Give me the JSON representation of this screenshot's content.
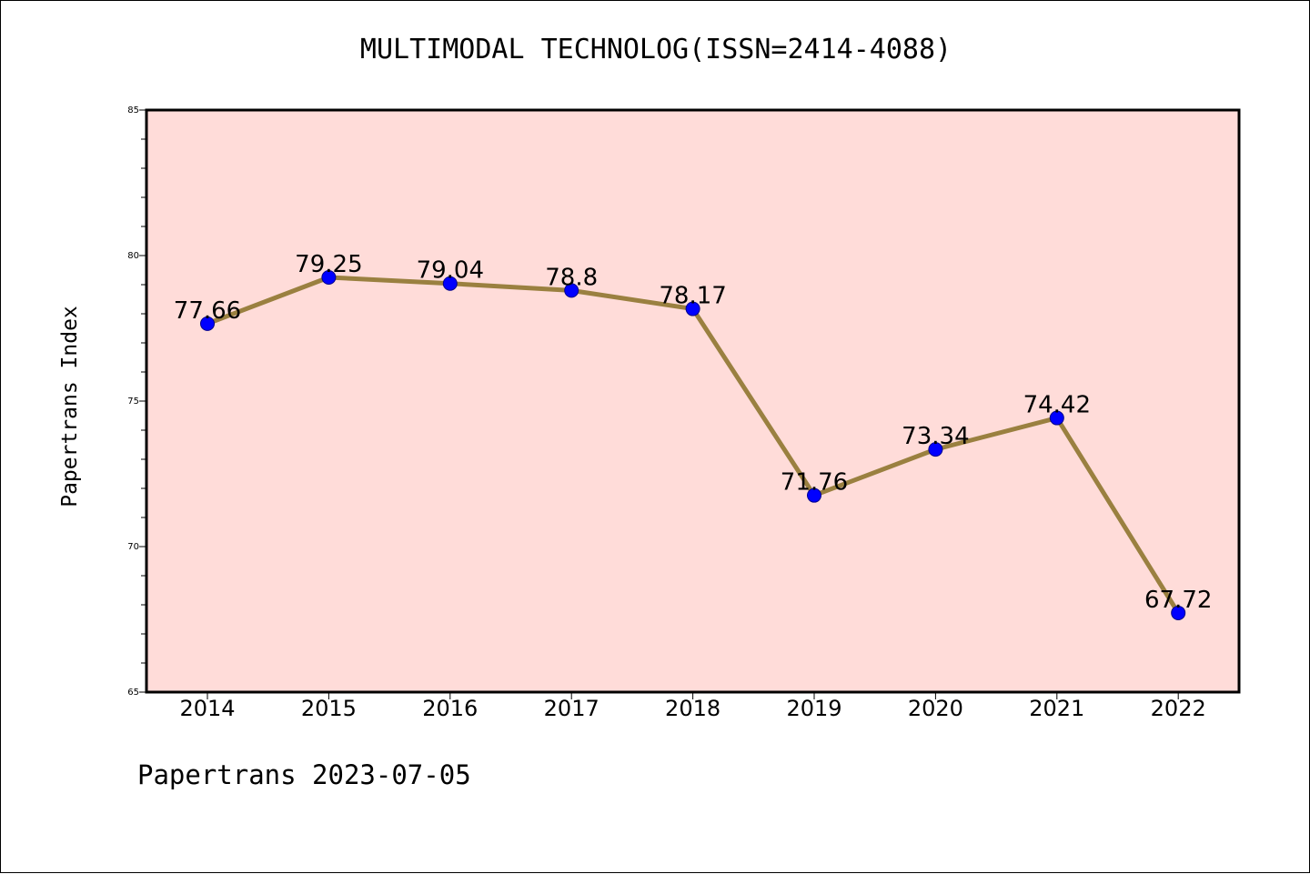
{
  "chart_data": {
    "type": "line",
    "title": "MULTIMODAL TECHNOLOG(ISSN=2414-4088)",
    "ylabel": "Papertrans Index",
    "xlabel": "",
    "x": [
      "2014",
      "2015",
      "2016",
      "2017",
      "2018",
      "2019",
      "2020",
      "2021",
      "2022"
    ],
    "values": [
      77.66,
      79.25,
      79.04,
      78.8,
      78.17,
      71.76,
      73.34,
      74.42,
      67.72
    ],
    "data_labels": [
      "77.66",
      "79.25",
      "79.04",
      "78.8",
      "78.17",
      "71.76",
      "73.34",
      "74.42",
      "67.72"
    ],
    "ylim": [
      65,
      85
    ],
    "yticks": [
      65,
      70,
      75,
      80,
      85
    ],
    "y_minor_step": 1,
    "grid": false,
    "legend": "none",
    "colors": {
      "plot_background": "#ffdcd9",
      "line": "#9a8040",
      "marker": "#0000ff",
      "marker_edge": "#00008b"
    }
  },
  "footer": {
    "text": "Papertrans 2023-07-05"
  }
}
